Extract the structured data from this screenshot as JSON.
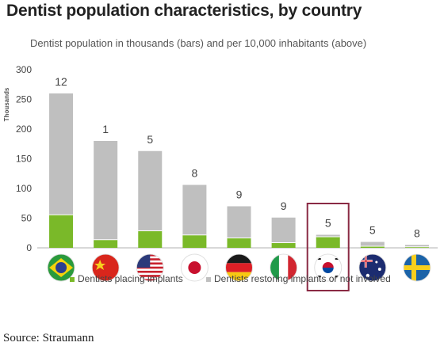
{
  "title": "Dentist population characteristics, by country",
  "subtitle": "Dentist population in thousands (bars) and per 10,000 inhabitants (above)",
  "source": "Source: Straumann",
  "legend": {
    "implants": "Dentists placing implants",
    "restoring": "Dentists restoring implants or not involved"
  },
  "colors": {
    "implants": "#7ab929",
    "restoring": "#bfbfbf",
    "highlight": "#8a2a44"
  },
  "chart_data": {
    "type": "bar",
    "stacked": true,
    "ylabel": "Thousands",
    "ylim": [
      0,
      300
    ],
    "yticks": [
      "0",
      "50",
      "100",
      "150",
      "200",
      "250",
      "300"
    ],
    "grid": false,
    "legend_position": "bottom",
    "categories": [
      "Brazil",
      "China",
      "United States",
      "Japan",
      "Germany",
      "Italy",
      "South Korea",
      "Australia",
      "Sweden"
    ],
    "flag_icons": [
      "brazil-flag-icon",
      "china-flag-icon",
      "usa-flag-icon",
      "japan-flag-icon",
      "germany-flag-icon",
      "italy-flag-icon",
      "south-korea-flag-icon",
      "australia-flag-icon",
      "sweden-flag-icon"
    ],
    "highlighted_category": "South Korea",
    "series": [
      {
        "name": "Dentists placing implants",
        "values": [
          55,
          13,
          28,
          21,
          16,
          8,
          18,
          2,
          1
        ]
      },
      {
        "name": "Dentists restoring implants or not involved",
        "values": [
          205,
          167,
          135,
          85,
          54,
          43,
          4,
          8,
          4
        ]
      }
    ],
    "data_labels": [
      "12",
      "1",
      "5",
      "8",
      "9",
      "9",
      "5",
      "5",
      "8"
    ]
  }
}
